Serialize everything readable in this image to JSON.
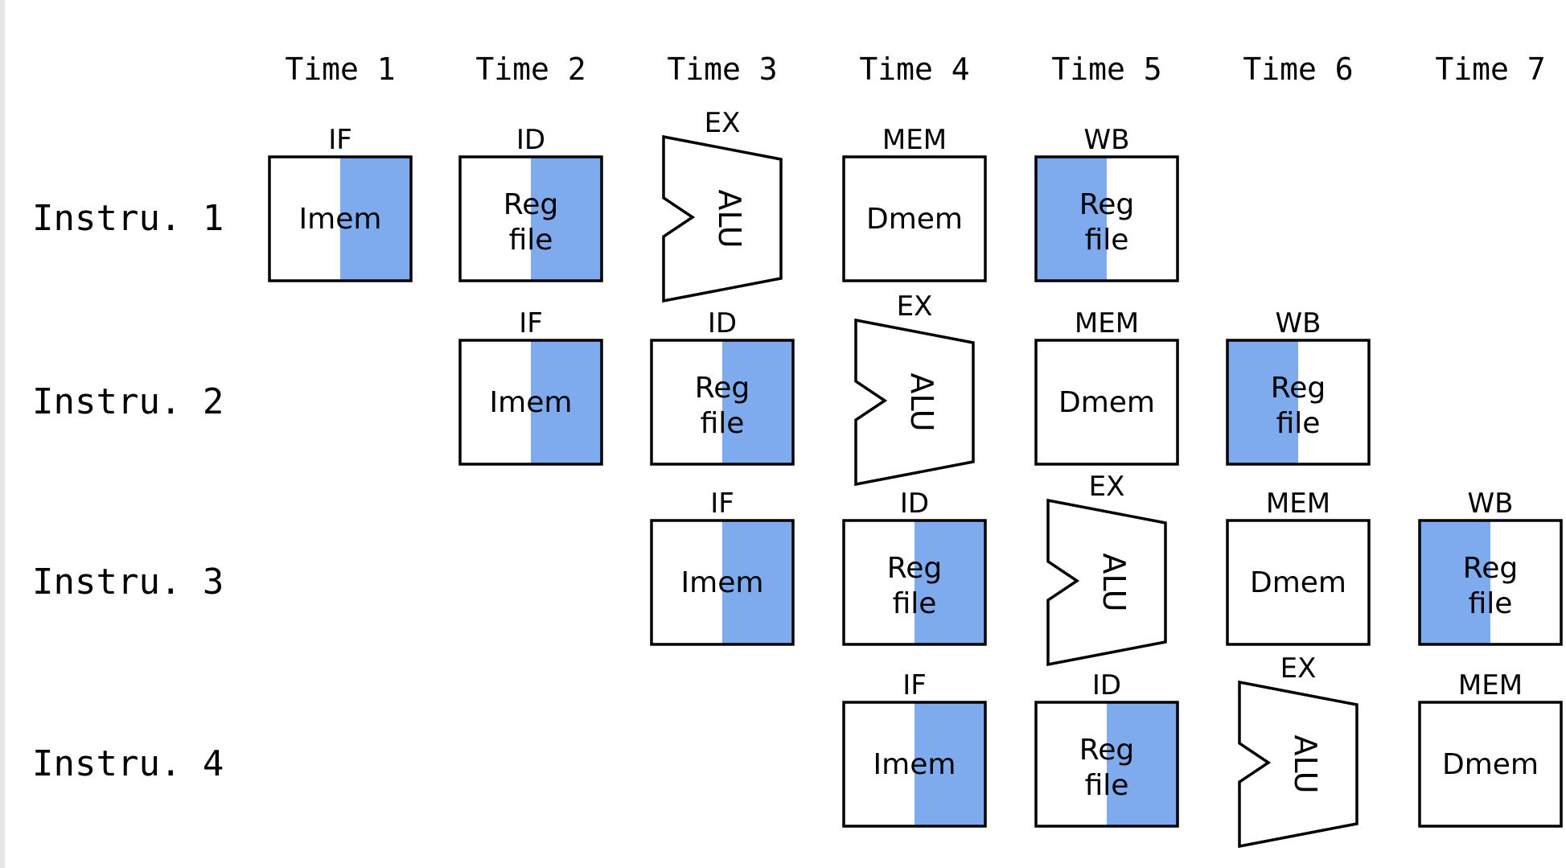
{
  "time_labels": [
    "Time 1",
    "Time 2",
    "Time 3",
    "Time 4",
    "Time 5",
    "Time 6",
    "Time 7"
  ],
  "instruction_labels": [
    "Instru. 1",
    "Instru. 2",
    "Instru. 3",
    "Instru. 4"
  ],
  "stage_names": {
    "IF": "IF",
    "ID": "ID",
    "EX": "EX",
    "MEM": "MEM",
    "WB": "WB"
  },
  "unit_text": {
    "imem": "Imem",
    "reg_line1": "Reg",
    "reg_line2": "file",
    "alu": "ALU",
    "dmem": "Dmem"
  },
  "pipeline": [
    [
      "IF",
      "ID",
      "EX",
      "MEM",
      "WB"
    ],
    [
      "IF",
      "ID",
      "EX",
      "MEM",
      "WB"
    ],
    [
      "IF",
      "ID",
      "EX",
      "MEM",
      "WB"
    ],
    [
      "IF",
      "ID",
      "EX",
      "MEM"
    ]
  ],
  "instruction_start_time": [
    1,
    2,
    3,
    4
  ],
  "colors": {
    "highlight": "#7eabee",
    "stroke": "#000000",
    "background": "#ffffff"
  }
}
